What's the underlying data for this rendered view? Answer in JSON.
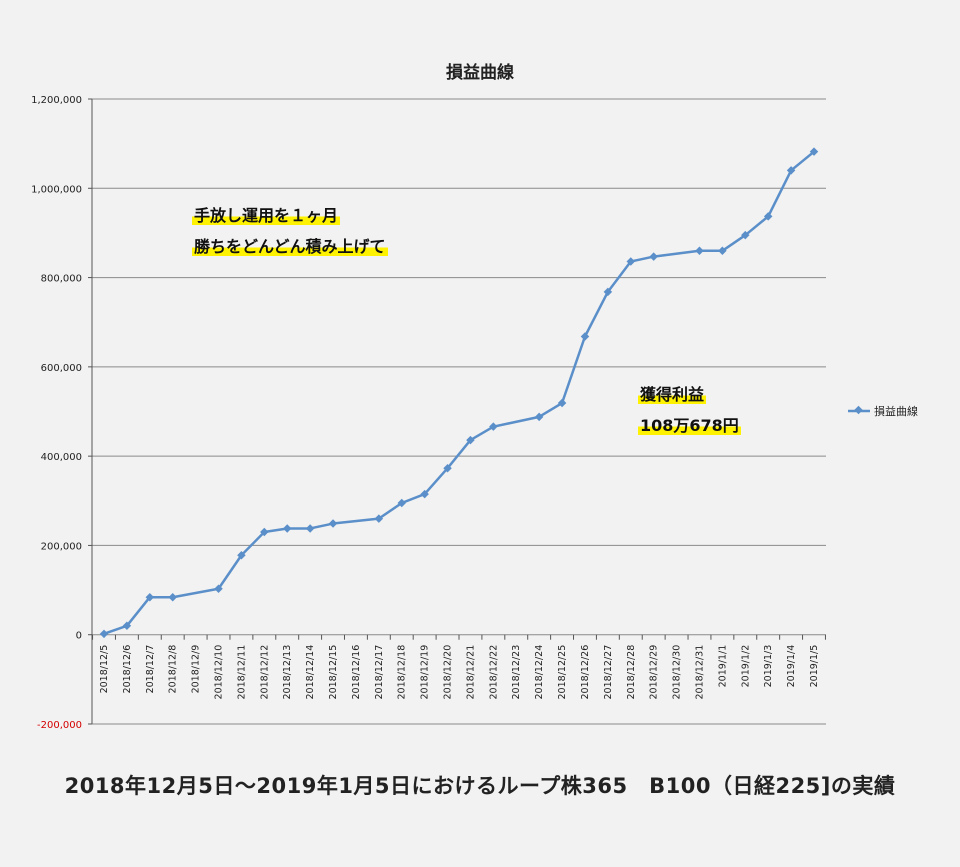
{
  "chart_data": {
    "type": "line",
    "title": "損益曲線",
    "categories": [
      "2018/12/5",
      "2018/12/6",
      "2018/12/7",
      "2018/12/8",
      "2018/12/9",
      "2018/12/10",
      "2018/12/11",
      "2018/12/12",
      "2018/12/13",
      "2018/12/14",
      "2018/12/15",
      "2018/12/16",
      "2018/12/17",
      "2018/12/18",
      "2018/12/19",
      "2018/12/20",
      "2018/12/21",
      "2018/12/22",
      "2018/12/23",
      "2018/12/24",
      "2018/12/25",
      "2018/12/26",
      "2018/12/27",
      "2018/12/28",
      "2018/12/29",
      "2018/12/30",
      "2018/12/31",
      "2019/1/1",
      "2019/1/2",
      "2019/1/3",
      "2019/1/4",
      "2019/1/5"
    ],
    "series": [
      {
        "name": "損益曲線",
        "color": "#5b8fc9",
        "values": [
          2000,
          20000,
          84000,
          84000,
          null,
          103000,
          178000,
          230000,
          238000,
          238000,
          249000,
          null,
          260000,
          295000,
          315000,
          373000,
          436000,
          466000,
          null,
          488000,
          519000,
          668000,
          768000,
          836000,
          847000,
          null,
          860000,
          860000,
          895000,
          937000,
          1040000,
          1082000
        ]
      }
    ],
    "ylim": [
      -200000,
      1200000
    ],
    "yticks": [
      -200000,
      0,
      200000,
      400000,
      600000,
      800000,
      1000000,
      1200000
    ],
    "ytick_labels": [
      "-200,000",
      "0",
      "200,000",
      "400,000",
      "600,000",
      "800,000",
      "1,000,000",
      "1,200,000"
    ],
    "grid": true,
    "legend_position": "right"
  },
  "annotations": {
    "note_line1": "手放し運用を１ヶ月",
    "note_line2": "勝ちをどんどん積み上げて",
    "profit_label": "獲得利益",
    "profit_value": "108万678円"
  },
  "caption": "2018年12月5日～2019年1月5日におけるループ株365　B100（日経225]の実績"
}
